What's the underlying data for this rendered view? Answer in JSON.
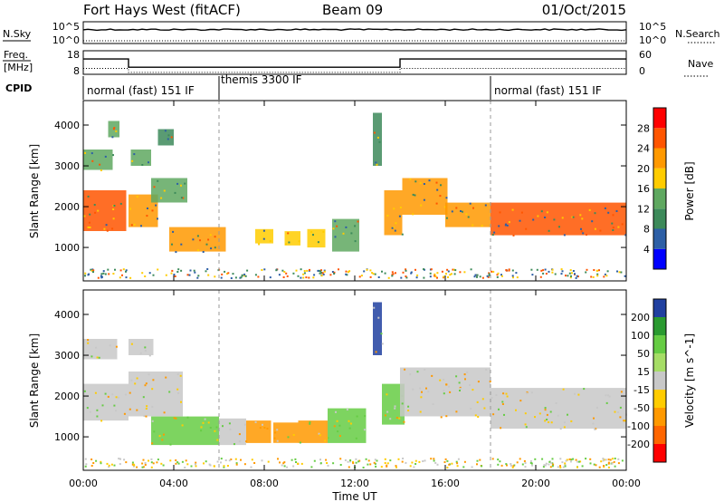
{
  "header": {
    "station": "Fort Hays West (fitACF)",
    "beam": "Beam 09",
    "date": "01/Oct/2015"
  },
  "top_panels": {
    "nsky_label": "N.Sky",
    "nsky_ticks": [
      "10^5",
      "10^0"
    ],
    "nsearch_label": "N.Search",
    "nsearch_ticks": [
      "10^5",
      "10^0"
    ],
    "freq_label": "Freq.",
    "freq_unit": "[MHz]",
    "freq_ticks": [
      "18",
      "8"
    ],
    "nave_label": "Nave",
    "nave_ticks": [
      "60",
      "0"
    ],
    "cpid_label": "CPID",
    "cpid_segments": [
      {
        "label": "normal (fast) 151 IF",
        "start": 0,
        "end": 6
      },
      {
        "label": "themis 3300 IF",
        "start": 6,
        "end": 18
      },
      {
        "label": "normal (fast) 151 IF",
        "start": 18,
        "end": 24
      }
    ]
  },
  "axes": {
    "ylabel": "Slant Range [km]",
    "xlabel": "Time UT",
    "x_ticks": [
      "00:00",
      "04:00",
      "08:00",
      "12:00",
      "16:00",
      "20:00",
      "00:00"
    ],
    "y_ticks": [
      "1000",
      "2000",
      "3000",
      "4000"
    ],
    "power_label": "Power [dB]",
    "velocity_label": "Velocity [m s^-1]"
  },
  "colors": {
    "power": [
      "#0000ff",
      "#2d5fa6",
      "#3d8a5a",
      "#5fa860",
      "#ffcc00",
      "#ff9900",
      "#ff5500",
      "#ff0000"
    ],
    "velocity": [
      "#2040a0",
      "#2a9a30",
      "#66cc44",
      "#a6dd66",
      "#c8c8c8",
      "#ffcc00",
      "#ff9900",
      "#ff6600",
      "#ff0000"
    ]
  },
  "chart_data": [
    {
      "type": "line",
      "title": "N.Sky / N.Search",
      "x": [
        0,
        24
      ],
      "series": [
        {
          "name": "N.Sky",
          "values": [
            3.2,
            3.2
          ]
        },
        {
          "name": "N.Search",
          "values": [
            0.1,
            0.1
          ]
        }
      ],
      "xlim": [
        0,
        24
      ]
    },
    {
      "type": "line",
      "title": "Freq / Nave",
      "x": [
        0,
        2,
        2,
        14,
        14,
        24
      ],
      "series": [
        {
          "name": "Freq",
          "values": [
            14.5,
            14.5,
            11,
            11,
            14.5,
            14.5
          ]
        },
        {
          "name": "Nave",
          "values": [
            15,
            15,
            5,
            5,
            15,
            15
          ]
        }
      ],
      "ylim": [
        8,
        18
      ],
      "xlim": [
        0,
        24
      ]
    },
    {
      "type": "heatmap",
      "title": "Power",
      "xlabel": "Time UT",
      "ylabel": "Slant Range [km]",
      "xlim": [
        0,
        24
      ],
      "ylim": [
        180,
        4600
      ],
      "colorbar": {
        "label": "Power [dB]",
        "ticks": [
          "4",
          "8",
          "12",
          "16",
          "20",
          "24",
          "28"
        ],
        "range": [
          0,
          30
        ]
      },
      "regions": [
        {
          "t0": 0.0,
          "t1": 1.9,
          "r0": 1400,
          "r1": 2400,
          "value": 24
        },
        {
          "t0": 0.0,
          "t1": 1.3,
          "r0": 2900,
          "r1": 3400,
          "value": 14
        },
        {
          "t0": 1.1,
          "t1": 1.6,
          "r0": 3700,
          "r1": 4100,
          "value": 12
        },
        {
          "t0": 2.0,
          "t1": 3.3,
          "r0": 1500,
          "r1": 2300,
          "value": 22
        },
        {
          "t0": 2.1,
          "t1": 3.0,
          "r0": 3000,
          "r1": 3400,
          "value": 12
        },
        {
          "t0": 3.0,
          "t1": 4.6,
          "r0": 2100,
          "r1": 2700,
          "value": 14
        },
        {
          "t0": 3.3,
          "t1": 4.0,
          "r0": 3500,
          "r1": 3900,
          "value": 10
        },
        {
          "t0": 3.8,
          "t1": 6.3,
          "r0": 900,
          "r1": 1500,
          "value": 22
        },
        {
          "t0": 7.6,
          "t1": 8.4,
          "r0": 1100,
          "r1": 1450,
          "value": 18
        },
        {
          "t0": 8.9,
          "t1": 9.6,
          "r0": 1050,
          "r1": 1400,
          "value": 18
        },
        {
          "t0": 9.9,
          "t1": 10.7,
          "r0": 1000,
          "r1": 1450,
          "value": 18
        },
        {
          "t0": 11.0,
          "t1": 12.2,
          "r0": 900,
          "r1": 1700,
          "value": 12
        },
        {
          "t0": 12.8,
          "t1": 13.2,
          "r0": 3000,
          "r1": 4300,
          "value": 10
        },
        {
          "t0": 13.3,
          "t1": 14.1,
          "r0": 1300,
          "r1": 2400,
          "value": 20
        },
        {
          "t0": 14.1,
          "t1": 16.1,
          "r0": 1800,
          "r1": 2700,
          "value": 22
        },
        {
          "t0": 16.0,
          "t1": 18.0,
          "r0": 1500,
          "r1": 2100,
          "value": 22
        },
        {
          "t0": 18.0,
          "t1": 24.0,
          "r0": 1300,
          "r1": 2100,
          "value": 24
        }
      ]
    },
    {
      "type": "heatmap",
      "title": "Velocity",
      "xlabel": "Time UT",
      "ylabel": "Slant Range [km]",
      "xlim": [
        0,
        24
      ],
      "ylim": [
        180,
        4600
      ],
      "colorbar": {
        "label": "Velocity [m s^-1]",
        "ticks": [
          "200",
          "100",
          "50",
          "15",
          "-15",
          "-50",
          "-100",
          "-200"
        ],
        "range": [
          -250,
          250
        ]
      },
      "regions": [
        {
          "t0": 0.0,
          "t1": 2.0,
          "r0": 1400,
          "r1": 2300,
          "value": 0
        },
        {
          "t0": 0.0,
          "t1": 1.5,
          "r0": 2900,
          "r1": 3400,
          "value": 0
        },
        {
          "t0": 2.0,
          "t1": 4.4,
          "r0": 1500,
          "r1": 2600,
          "value": 0
        },
        {
          "t0": 2.0,
          "t1": 3.1,
          "r0": 3000,
          "r1": 3400,
          "value": 0
        },
        {
          "t0": 3.0,
          "t1": 6.0,
          "r0": 800,
          "r1": 1500,
          "value": 60
        },
        {
          "t0": 6.0,
          "t1": 7.2,
          "r0": 800,
          "r1": 1450,
          "value": 0
        },
        {
          "t0": 7.2,
          "t1": 8.3,
          "r0": 850,
          "r1": 1400,
          "value": -50
        },
        {
          "t0": 8.4,
          "t1": 9.5,
          "r0": 850,
          "r1": 1350,
          "value": -50
        },
        {
          "t0": 9.5,
          "t1": 10.8,
          "r0": 850,
          "r1": 1400,
          "value": -50
        },
        {
          "t0": 10.8,
          "t1": 12.5,
          "r0": 850,
          "r1": 1700,
          "value": 60
        },
        {
          "t0": 12.8,
          "t1": 13.2,
          "r0": 3000,
          "r1": 4300,
          "value": 150
        },
        {
          "t0": 13.2,
          "t1": 14.2,
          "r0": 1300,
          "r1": 2300,
          "value": 60
        },
        {
          "t0": 14.0,
          "t1": 18.0,
          "r0": 1500,
          "r1": 2700,
          "value": 0
        },
        {
          "t0": 18.0,
          "t1": 24.0,
          "r0": 1200,
          "r1": 2200,
          "value": 0
        }
      ]
    }
  ]
}
